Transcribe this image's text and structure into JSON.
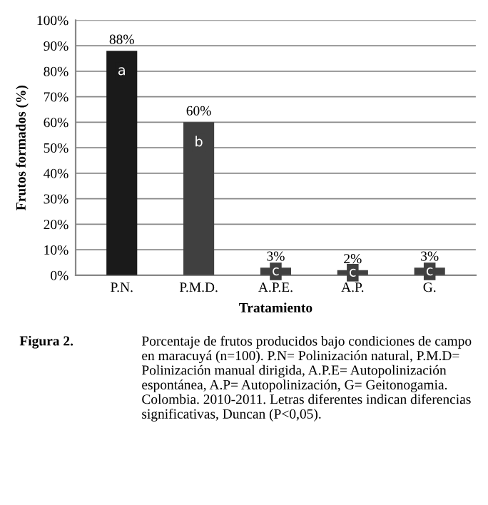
{
  "chart_data": {
    "type": "bar",
    "xlabel": "Tratamiento",
    "ylabel": "Frutos formados (%)",
    "categories": [
      "P.N.",
      "P.M.D.",
      "A.P.E.",
      "A.P.",
      "G."
    ],
    "values": [
      88,
      60,
      3,
      2,
      3
    ],
    "colors": [
      "#1a1a1a",
      "#404040",
      "#404040",
      "#404040",
      "#404040"
    ],
    "value_labels": [
      "88%",
      "60%",
      "3%",
      "2%",
      "3%"
    ],
    "ylim": [
      0,
      100
    ],
    "yticks": [
      {
        "value": 0,
        "label": "0%"
      },
      {
        "value": 10,
        "label": "10%"
      },
      {
        "value": 20,
        "label": "20%"
      },
      {
        "value": 30,
        "label": "30%"
      },
      {
        "value": 40,
        "label": "40%"
      },
      {
        "value": 50,
        "label": "50%"
      },
      {
        "value": 60,
        "label": "60%"
      },
      {
        "value": 70,
        "label": "70%"
      },
      {
        "value": 80,
        "label": "80%"
      },
      {
        "value": 90,
        "label": "90%"
      },
      {
        "value": 100,
        "label": "100%"
      }
    ],
    "grid": "y",
    "annotations": [
      "a",
      "b",
      "c",
      "c",
      "c",
      "Figura 2.",
      "Porcentaje de frutos producidos bajo condiciones de campo en maracuyá (n=100). P.N= Polinización natural, P.M.D= Polinización manual dirigida, A.P.E= Autopolinización espontánea, A.P= Autopolinización, G= Geitonogamia. Colombia. 2010-2011. Letras diferentes indican diferencias significativas, Duncan (P<0,05)."
    ]
  }
}
